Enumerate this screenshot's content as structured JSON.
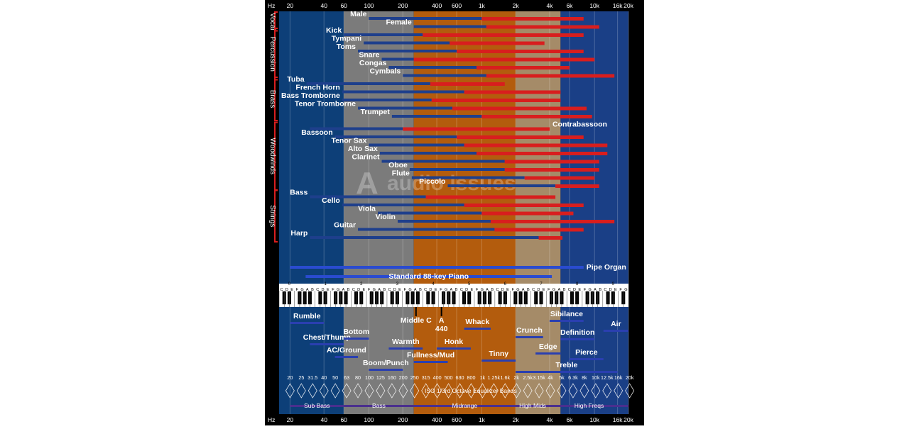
{
  "chart_data": {
    "type": "bar",
    "title": "",
    "axis": {
      "unit_label": "Hz",
      "scale": "log",
      "range_hz": [
        16,
        20000
      ],
      "ticks": [
        {
          "v": 20,
          "t": "20"
        },
        {
          "v": 40,
          "t": "40"
        },
        {
          "v": 60,
          "t": "60"
        },
        {
          "v": 100,
          "t": "100"
        },
        {
          "v": 200,
          "t": "200"
        },
        {
          "v": 400,
          "t": "400"
        },
        {
          "v": 600,
          "t": "600"
        },
        {
          "v": 1000,
          "t": "1k"
        },
        {
          "v": 2000,
          "t": "2k"
        },
        {
          "v": 4000,
          "t": "4k"
        },
        {
          "v": 6000,
          "t": "6k"
        },
        {
          "v": 10000,
          "t": "10k"
        },
        {
          "v": 16000,
          "t": "16k"
        },
        {
          "v": 20000,
          "t": "20k"
        }
      ]
    },
    "zones": [
      {
        "from": 16,
        "to": 60,
        "color": "#0d3f78"
      },
      {
        "from": 60,
        "to": 250,
        "color": "#7b7b7b"
      },
      {
        "from": 250,
        "to": 2000,
        "color": "#b35c0d"
      },
      {
        "from": 2000,
        "to": 5000,
        "color": "#a58b68"
      },
      {
        "from": 5000,
        "to": 20000,
        "color": "#1a3f86"
      }
    ],
    "categories": [
      "Vocal",
      "Percussion",
      "Brass",
      "Woodwinds",
      "Strings"
    ],
    "instruments": [
      {
        "name": "Male",
        "cat": "Vocal",
        "fund": [
          100,
          1000
        ],
        "harm": [
          1000,
          8000
        ]
      },
      {
        "name": "Female",
        "cat": "Vocal",
        "fund": [
          250,
          1100
        ],
        "harm": [
          1100,
          11000
        ]
      },
      {
        "name": "Kick",
        "cat": "Percussion",
        "fund": [
          60,
          300
        ],
        "harm": [
          300,
          8000
        ]
      },
      {
        "name": "Tympani",
        "cat": "Percussion",
        "fund": [
          90,
          520
        ],
        "harm": [
          520,
          3600
        ]
      },
      {
        "name": "Toms",
        "cat": "Percussion",
        "fund": [
          80,
          600
        ],
        "harm": [
          600,
          8000
        ]
      },
      {
        "name": "Snare",
        "cat": "Percussion",
        "fund": [
          130,
          250
        ],
        "harm": [
          250,
          10000
        ]
      },
      {
        "name": "Congas",
        "cat": "Percussion",
        "fund": [
          150,
          900
        ],
        "harm": [
          900,
          6000
        ]
      },
      {
        "name": "Cymbals",
        "cat": "Percussion",
        "fund": [
          200,
          1100
        ],
        "harm": [
          1100,
          15000
        ]
      },
      {
        "name": "Tuba",
        "cat": "Brass",
        "fund": [
          28,
          350
        ],
        "harm": [
          350,
          1600
        ]
      },
      {
        "name": "French Horn",
        "cat": "Brass",
        "fund": [
          58,
          700
        ],
        "harm": [
          700,
          5000
        ]
      },
      {
        "name": "Bass Tromborne",
        "cat": "Brass",
        "fund": [
          58,
          360
        ],
        "harm": [
          360,
          5000
        ]
      },
      {
        "name": "Tenor Tromborne",
        "cat": "Brass",
        "fund": [
          80,
          550
        ],
        "harm": [
          550,
          8500
        ]
      },
      {
        "name": "Trumpet",
        "cat": "Brass",
        "fund": [
          160,
          1000
        ],
        "harm": [
          1000,
          9500
        ]
      },
      {
        "name": "Contrabassoon",
        "cat": "Woodwinds",
        "fund": [
          30,
          200
        ],
        "harm": [
          200,
          4000
        ]
      },
      {
        "name": "Bassoon",
        "cat": "Woodwinds",
        "fund": [
          50,
          600
        ],
        "harm": [
          600,
          8000
        ]
      },
      {
        "name": "Tenor Sax",
        "cat": "Woodwinds",
        "fund": [
          100,
          700
        ],
        "harm": [
          700,
          13000
        ]
      },
      {
        "name": "Alto Sax",
        "cat": "Woodwinds",
        "fund": [
          125,
          900
        ],
        "harm": [
          900,
          13000
        ]
      },
      {
        "name": "Clarinet",
        "cat": "Woodwinds",
        "fund": [
          130,
          1600
        ],
        "harm": [
          1600,
          11000
        ]
      },
      {
        "name": "Oboe",
        "cat": "Woodwinds",
        "fund": [
          230,
          1600
        ],
        "harm": [
          1600,
          11000
        ]
      },
      {
        "name": "Flute",
        "cat": "Woodwinds",
        "fund": [
          240,
          2400
        ],
        "harm": [
          2400,
          10000
        ]
      },
      {
        "name": "Piccolo",
        "cat": "Woodwinds",
        "fund": [
          500,
          4500
        ],
        "harm": [
          4500,
          11000
        ]
      },
      {
        "name": "Bass",
        "cat": "Strings",
        "fund": [
          30,
          320
        ],
        "harm": [
          320,
          4500
        ]
      },
      {
        "name": "Cello",
        "cat": "Strings",
        "fund": [
          58,
          700
        ],
        "harm": [
          700,
          8000
        ]
      },
      {
        "name": "Viola",
        "cat": "Strings",
        "fund": [
          120,
          1000
        ],
        "harm": [
          1000,
          6500
        ]
      },
      {
        "name": "Violin",
        "cat": "Strings",
        "fund": [
          180,
          1200
        ],
        "harm": [
          1200,
          15000
        ]
      },
      {
        "name": "Guitar",
        "cat": "Strings",
        "fund": [
          80,
          1300
        ],
        "harm": [
          1300,
          8000
        ]
      },
      {
        "name": "Harp",
        "cat": "Strings",
        "fund": [
          30,
          3200
        ],
        "harm": [
          3200,
          5200
        ]
      }
    ],
    "pipe_organ": {
      "label": "Pipe Organ",
      "range": [
        20,
        8000
      ]
    },
    "piano": {
      "label": "Standard 88-key Piano",
      "range": [
        27.5,
        4186
      ]
    },
    "middle_c": {
      "label": "Middle C",
      "hz": 261.6
    },
    "a440": {
      "label": "A",
      "sub": "440",
      "hz": 440
    },
    "keyboard_letters": "CDEFGAB",
    "octave_numbers": [
      "0",
      "1",
      "2",
      "3",
      "4",
      "5",
      "6",
      "7",
      "8",
      "9"
    ],
    "descriptors": [
      {
        "t": "Rumble",
        "from": 20,
        "to": 40
      },
      {
        "t": "Chest/Thump",
        "from": 30,
        "to": 60
      },
      {
        "t": "Bottom",
        "from": 60,
        "to": 100
      },
      {
        "t": "AC/Ground",
        "from": 50,
        "to": 80
      },
      {
        "t": "Warmth",
        "from": 150,
        "to": 300
      },
      {
        "t": "Boom/Punch",
        "from": 100,
        "to": 200
      },
      {
        "t": "Fullness/Mud",
        "from": 250,
        "to": 500
      },
      {
        "t": "Honk",
        "from": 400,
        "to": 800
      },
      {
        "t": "Whack",
        "from": 700,
        "to": 1200
      },
      {
        "t": "Tinny",
        "from": 1000,
        "to": 2000
      },
      {
        "t": "Crunch",
        "from": 2000,
        "to": 3500
      },
      {
        "t": "Sibilance",
        "from": 4000,
        "to": 8000
      },
      {
        "t": "Definition",
        "from": 5000,
        "to": 10000
      },
      {
        "t": "Edge",
        "from": 3000,
        "to": 5000
      },
      {
        "t": "Pierce",
        "from": 6000,
        "to": 12000
      },
      {
        "t": "Treble",
        "from": 2000,
        "to": 16000
      },
      {
        "t": "Air",
        "from": 12000,
        "to": 20000
      }
    ],
    "eq_label": "ISO 1/3rd Octave  Equalizer Bands",
    "eq_bands": [
      "20",
      "25",
      "31.5",
      "40",
      "50",
      "63",
      "80",
      "100",
      "125",
      "160",
      "200",
      "250",
      "315",
      "400",
      "500",
      "630",
      "800",
      "1k",
      "1.25k",
      "1.6k",
      "2k",
      "2.5k",
      "3.15k",
      "4k",
      "5k",
      "6.3k",
      "8k",
      "10k",
      "12.5k",
      "16k",
      "20k"
    ],
    "ranges": [
      {
        "t": "Sub Bass",
        "from": 20,
        "to": 60
      },
      {
        "t": "Bass",
        "from": 60,
        "to": 250
      },
      {
        "t": "Midrange",
        "from": 250,
        "to": 2000
      },
      {
        "t": "High Mids",
        "from": 2000,
        "to": 4000
      },
      {
        "t": "High Freqs",
        "from": 4000,
        "to": 20000
      }
    ],
    "watermark": "audio issues"
  }
}
